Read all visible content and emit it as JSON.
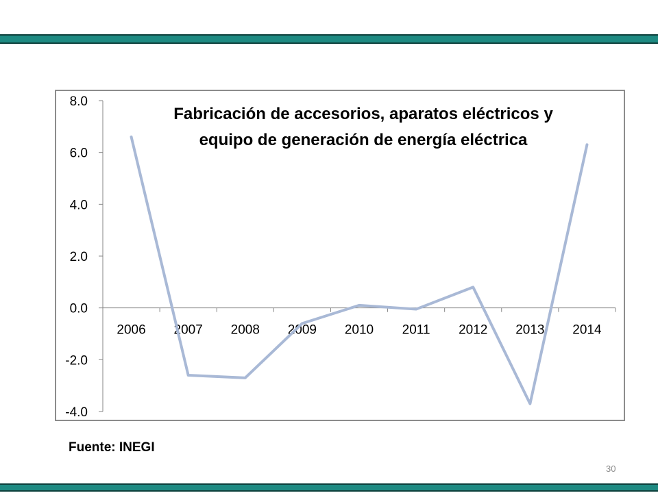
{
  "slide": {
    "source": "Fuente: INEGI",
    "page_number": "30",
    "accent_color": "#1e8a82"
  },
  "chart_data": {
    "type": "line",
    "title_lines": [
      "Fabricación de accesorios, aparatos eléctricos y",
      "equipo de generación de energía  eléctrica"
    ],
    "categories": [
      "2006",
      "2007",
      "2008",
      "2009",
      "2010",
      "2011",
      "2012",
      "2013",
      "2014"
    ],
    "values": [
      6.6,
      -2.6,
      -2.7,
      -0.6,
      0.1,
      -0.05,
      0.8,
      -3.7,
      6.3
    ],
    "y_ticks": [
      "8.0",
      "6.0",
      "4.0",
      "2.0",
      "0.0",
      "-2.0",
      "-4.0"
    ],
    "ylim": [
      -4,
      8
    ],
    "grid": false,
    "legend": "none",
    "line_color": "#a9b9d6"
  }
}
